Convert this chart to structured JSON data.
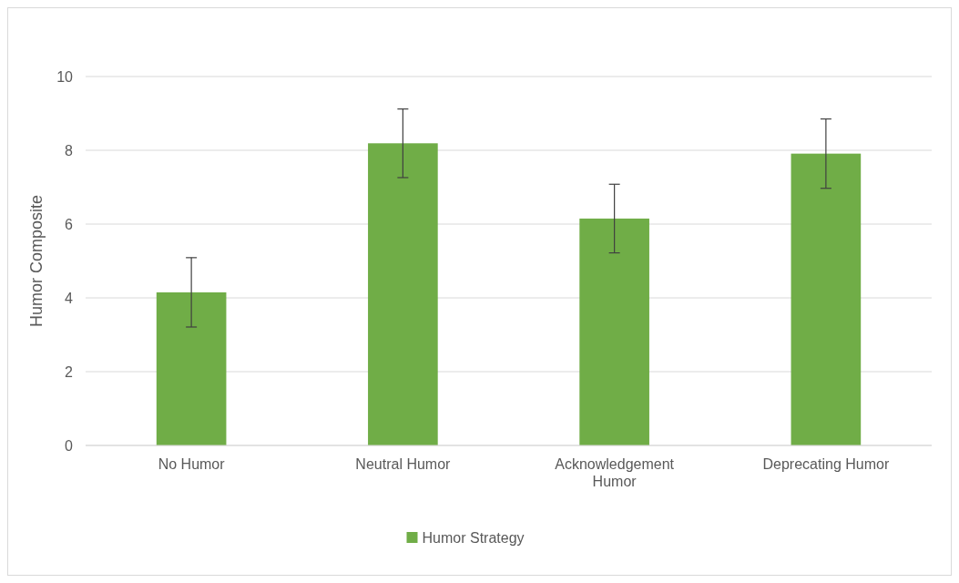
{
  "chart_data": {
    "type": "bar",
    "ylabel": "Humor Composite",
    "categories": [
      "No Humor",
      "Neutral Humor",
      "Acknowledgement Humor",
      "Deprecating Humor"
    ],
    "series": [
      {
        "name": "Humor Strategy",
        "color": "#70ad47",
        "values": [
          4.15,
          8.19,
          6.15,
          7.91
        ],
        "errors": [
          0.94,
          0.93,
          0.93,
          0.94
        ]
      }
    ],
    "ylim": [
      0,
      10
    ],
    "yticks": [
      0,
      2,
      4,
      6,
      8,
      10
    ],
    "grid": "y",
    "legend": "bottom"
  }
}
